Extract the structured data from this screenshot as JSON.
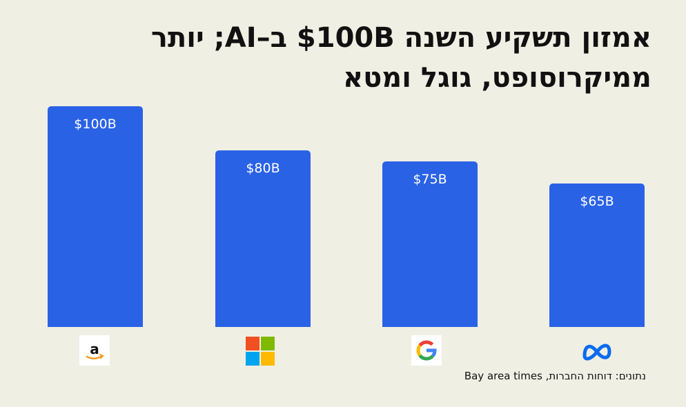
{
  "title": "אמזון תשקיע השנה $100B ב–AI; יותר ממיקרוסופט, גוגל ומטא",
  "source": "נתונים: דוחות החברות, Bay area times",
  "colors": {
    "bar": "#2a62e6",
    "background": "#f0efe3",
    "label": "#ffffff"
  },
  "chart_data": {
    "type": "bar",
    "title": "אמזון תשקיע השנה $100B ב–AI; יותר ממיקרוסופט, גוגל ומטא",
    "categories": [
      "amazon-logo",
      "microsoft-logo",
      "google-logo",
      "meta-logo"
    ],
    "values": [
      100,
      80,
      75,
      65
    ],
    "data_labels": [
      "$100B",
      "$80B",
      "$75B",
      "$65B"
    ],
    "unit": "B",
    "xlabel": "",
    "ylabel": "",
    "ylim": [
      0,
      100
    ],
    "grid": false,
    "legend": "none"
  }
}
